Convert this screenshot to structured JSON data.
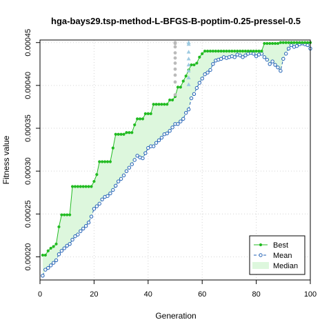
{
  "chart_data": {
    "type": "line",
    "title": "hga-bays29.tsp-method-L-BFGS-B-poptim-0.25-pressel-0.5",
    "xlabel": "Generation",
    "ylabel": "Fitness value",
    "xlim": [
      0,
      100
    ],
    "ylim": [
      0.000173,
      0.000453
    ],
    "xticks": [
      0,
      20,
      40,
      60,
      80,
      100
    ],
    "yticks": [
      0.0002,
      0.00025,
      0.0003,
      0.00035,
      0.0004,
      0.00045
    ],
    "ytick_labels": [
      "0.00020",
      "0.00025",
      "0.00030",
      "0.00035",
      "0.00040",
      "0.00045"
    ],
    "grid": true,
    "legend": {
      "position": "bottom-right",
      "entries": [
        {
          "label": "Best",
          "color": "#22bb22"
        },
        {
          "label": "Mean",
          "color": "#1f5fb4"
        },
        {
          "label": "Median",
          "color": "#ddf7dd"
        }
      ]
    },
    "series": [
      {
        "name": "Best",
        "color": "#22bb22",
        "x": [
          1,
          2,
          3,
          4,
          5,
          6,
          7,
          8,
          9,
          10,
          11,
          12,
          13,
          14,
          15,
          16,
          17,
          18,
          19,
          20,
          21,
          22,
          23,
          24,
          25,
          26,
          27,
          28,
          29,
          30,
          31,
          32,
          33,
          34,
          35,
          36,
          37,
          38,
          39,
          40,
          41,
          42,
          43,
          44,
          45,
          46,
          47,
          48,
          49,
          50,
          51,
          52,
          53,
          54,
          55,
          56,
          57,
          58,
          59,
          60,
          61,
          62,
          63,
          64,
          65,
          66,
          67,
          68,
          69,
          70,
          71,
          72,
          73,
          74,
          75,
          76,
          77,
          78,
          79,
          80,
          81,
          82,
          83,
          84,
          85,
          86,
          87,
          88,
          89,
          90,
          91,
          92,
          93,
          94,
          95,
          96,
          97,
          98,
          99,
          100
        ],
        "values": [
          0.000202,
          0.000202,
          0.000207,
          0.00021,
          0.000212,
          0.000215,
          0.000235,
          0.000249,
          0.000249,
          0.000249,
          0.000249,
          0.000282,
          0.000282,
          0.000282,
          0.000282,
          0.000282,
          0.000282,
          0.000282,
          0.000282,
          0.000288,
          0.000296,
          0.000311,
          0.000311,
          0.000311,
          0.000311,
          0.000311,
          0.000327,
          0.000343,
          0.000343,
          0.000343,
          0.000343,
          0.000345,
          0.000345,
          0.000345,
          0.000354,
          0.000361,
          0.000361,
          0.000361,
          0.000367,
          0.000367,
          0.000367,
          0.000378,
          0.000378,
          0.000378,
          0.000378,
          0.000378,
          0.000378,
          0.000383,
          0.000383,
          0.000387,
          0.000398,
          0.000398,
          0.000405,
          0.000411,
          0.000418,
          0.000424,
          0.000424,
          0.000426,
          0.000433,
          0.000437,
          0.00044,
          0.00044,
          0.00044,
          0.00044,
          0.00044,
          0.00044,
          0.00044,
          0.00044,
          0.00044,
          0.00044,
          0.00044,
          0.00044,
          0.00044,
          0.00044,
          0.00044,
          0.00044,
          0.00044,
          0.00044,
          0.00044,
          0.00044,
          0.00044,
          0.00044,
          0.000449,
          0.000449,
          0.000449,
          0.000449,
          0.000449,
          0.000449,
          0.00045,
          0.00045,
          0.00045,
          0.00045,
          0.00045,
          0.00045,
          0.00045,
          0.00045,
          0.00045,
          0.00045,
          0.00045,
          0.00045
        ]
      },
      {
        "name": "Mean",
        "color": "#1f5fb4",
        "x": [
          1,
          2,
          3,
          4,
          5,
          6,
          7,
          8,
          9,
          10,
          11,
          12,
          13,
          14,
          15,
          16,
          17,
          18,
          19,
          20,
          21,
          22,
          23,
          24,
          25,
          26,
          27,
          28,
          29,
          30,
          31,
          32,
          33,
          34,
          35,
          36,
          37,
          38,
          39,
          40,
          41,
          42,
          43,
          44,
          45,
          46,
          47,
          48,
          49,
          50,
          51,
          52,
          53,
          54,
          55,
          56,
          57,
          58,
          59,
          60,
          61,
          62,
          63,
          64,
          65,
          66,
          67,
          68,
          69,
          70,
          71,
          72,
          73,
          74,
          75,
          76,
          77,
          78,
          79,
          80,
          81,
          82,
          83,
          84,
          85,
          86,
          87,
          88,
          89,
          90,
          91,
          92,
          93,
          94,
          95,
          96,
          97,
          98,
          99,
          100
        ],
        "values": [
          0.000178,
          0.000185,
          0.000187,
          0.00019,
          0.000193,
          0.000196,
          0.000203,
          0.000207,
          0.00021,
          0.000213,
          0.000215,
          0.00022,
          0.000224,
          0.000226,
          0.00023,
          0.000233,
          0.000236,
          0.00024,
          0.000247,
          0.000256,
          0.000259,
          0.000262,
          0.000267,
          0.00027,
          0.000271,
          0.000274,
          0.000278,
          0.000283,
          0.000288,
          0.000291,
          0.000295,
          0.0003,
          0.000304,
          0.000308,
          0.000313,
          0.000318,
          0.000316,
          0.000315,
          0.000321,
          0.000327,
          0.000329,
          0.000329,
          0.000333,
          0.000336,
          0.000339,
          0.000343,
          0.000344,
          0.000347,
          0.000351,
          0.000355,
          0.000355,
          0.000358,
          0.000361,
          0.000368,
          0.000372,
          0.000385,
          0.00039,
          0.000397,
          0.000403,
          0.000408,
          0.000413,
          0.000415,
          0.000418,
          0.000425,
          0.000429,
          0.00043,
          0.000431,
          0.000433,
          0.000432,
          0.000433,
          0.000434,
          0.000433,
          0.000436,
          0.000435,
          0.000433,
          0.000435,
          0.000437,
          0.000438,
          0.000437,
          0.000434,
          0.000436,
          0.000437,
          0.000433,
          0.00043,
          0.000425,
          0.000428,
          0.000424,
          0.000421,
          0.000417,
          0.000431,
          0.000437,
          0.000443,
          0.000447,
          0.000445,
          0.000446,
          0.000448,
          0.000449,
          0.000448,
          0.000447,
          0.000443
        ]
      },
      {
        "name": "Median",
        "color": "#ddf7dd",
        "lower": [
          0.000178,
          0.000185,
          0.000187,
          0.00019,
          0.000193,
          0.000196,
          0.000203,
          0.000207,
          0.00021,
          0.000213,
          0.000215,
          0.00022,
          0.000224,
          0.000226,
          0.00023,
          0.000233,
          0.000236,
          0.00024,
          0.000247,
          0.000256,
          0.000259,
          0.000262,
          0.000267,
          0.00027,
          0.000271,
          0.000274,
          0.000278,
          0.000283,
          0.000288,
          0.000291,
          0.000295,
          0.0003,
          0.000304,
          0.000308,
          0.000313,
          0.000318,
          0.000316,
          0.000315,
          0.000321,
          0.000327,
          0.000329,
          0.000329,
          0.000333,
          0.000336,
          0.000339,
          0.000343,
          0.000344,
          0.000347,
          0.000351,
          0.000355,
          0.000355,
          0.000358,
          0.000361,
          0.000368,
          0.000372,
          0.000385,
          0.00039,
          0.000397,
          0.000403,
          0.000408,
          0.000413,
          0.000415,
          0.000418,
          0.000425,
          0.000429,
          0.00043,
          0.000431,
          0.000433,
          0.000432,
          0.000433,
          0.000434,
          0.000433,
          0.000436,
          0.000435,
          0.000433,
          0.000435,
          0.000437,
          0.000438,
          0.000437,
          0.000434,
          0.000436,
          0.000437,
          0.000433,
          0.00043,
          0.000425,
          0.000428,
          0.000424,
          0.000421,
          0.000417,
          0.000431,
          0.000437,
          0.000443,
          0.000447,
          0.000445,
          0.000446,
          0.000448,
          0.000449,
          0.000448,
          0.000447,
          0.000443
        ]
      }
    ],
    "outliers": [
      {
        "x": 50,
        "values": [
          0.00045,
          0.000449,
          0.000445,
          0.000438,
          0.000432,
          0.000426,
          0.000419,
          0.000412,
          0.000404,
          0.000389
        ],
        "color": "#bbbbbb",
        "shape": "circle"
      },
      {
        "x": 55,
        "values": [
          0.00045,
          0.000448,
          0.000439,
          0.000431,
          0.000424,
          0.000417,
          0.000409,
          0.000401
        ],
        "color": "#9ecae1",
        "shape": "triangle"
      }
    ]
  }
}
